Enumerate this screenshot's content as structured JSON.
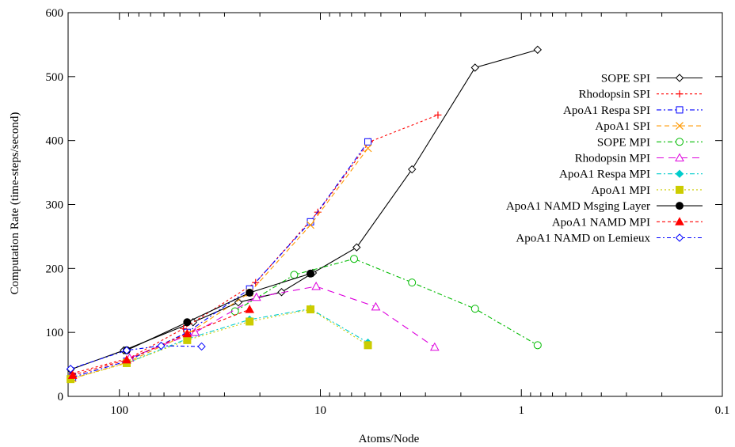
{
  "chart_data": {
    "type": "line",
    "xlabel": "Atoms/Node",
    "ylabel": "Computation Rate (time-steps/second)",
    "x_scale": "log",
    "x_reversed": true,
    "xlim": [
      180,
      0.1
    ],
    "ylim": [
      0,
      600
    ],
    "grid": false,
    "legend_position": "right",
    "x_ticks": [
      {
        "value": 100,
        "label": "100"
      },
      {
        "value": 10,
        "label": "10"
      },
      {
        "value": 1,
        "label": "1"
      },
      {
        "value": 0.1,
        "label": "0.1"
      }
    ],
    "y_ticks": [
      {
        "value": 0,
        "label": "0"
      },
      {
        "value": 100,
        "label": "100"
      },
      {
        "value": 200,
        "label": "200"
      },
      {
        "value": 300,
        "label": "300"
      },
      {
        "value": 400,
        "label": "400"
      },
      {
        "value": 500,
        "label": "500"
      },
      {
        "value": 600,
        "label": "600"
      }
    ],
    "series": [
      {
        "name": "SOPE SPI",
        "color": "#000000",
        "dash": "",
        "marker": "diamond",
        "x": [
          175,
          95,
          43,
          25.6,
          15.6,
          10.9,
          6.6,
          3.5,
          1.7,
          0.83
        ],
        "y": [
          42,
          72,
          116,
          147,
          163,
          193,
          233,
          355,
          514,
          542
        ]
      },
      {
        "name": "Rhodopsin SPI",
        "color": "#ff0000",
        "dash": "3,3",
        "marker": "plus",
        "x": [
          171,
          89,
          48,
          21,
          10.3,
          5.7,
          2.6
        ],
        "y": [
          36,
          60,
          106,
          178,
          288,
          398,
          440
        ]
      },
      {
        "name": "ApoA1 Respa SPI",
        "color": "#0000ff",
        "dash": "6,3,2,3",
        "marker": "square",
        "x": [
          171,
          92,
          46,
          22.5,
          11.2,
          5.8
        ],
        "y": [
          30,
          55,
          100,
          168,
          273,
          398
        ]
      },
      {
        "name": "ApoA1 SPI",
        "color": "#ff9900",
        "dash": "6,4",
        "marker": "x",
        "x": [
          171,
          92,
          46,
          22.5,
          11.2,
          5.8
        ],
        "y": [
          28,
          53,
          97,
          162,
          268,
          388
        ]
      },
      {
        "name": "SOPE MPI",
        "color": "#00bb00",
        "dash": "6,3,2,3",
        "marker": "circle",
        "x": [
          26.6,
          13.5,
          6.8,
          3.5,
          1.7,
          0.83
        ],
        "y": [
          133,
          190,
          215,
          178,
          137,
          80
        ]
      },
      {
        "name": "Rhodopsin MPI",
        "color": "#dd00dd",
        "dash": "9,6",
        "marker": "triangle",
        "x": [
          89,
          42,
          20.8,
          10.5,
          5.3,
          2.7
        ],
        "y": [
          60,
          100,
          155,
          172,
          140,
          77
        ]
      },
      {
        "name": "ApoA1 Respa MPI",
        "color": "#00cccc",
        "dash": "6,3,2,3",
        "marker": "filled-diamond",
        "x": [
          92,
          46,
          22.5,
          11.2,
          5.8
        ],
        "y": [
          52,
          90,
          120,
          137,
          84
        ]
      },
      {
        "name": "ApoA1 MPI",
        "color": "#cccc00",
        "dash": "2,3",
        "marker": "filled-square",
        "x": [
          175,
          92,
          46,
          22.5,
          11.2,
          5.8
        ],
        "y": [
          27,
          52,
          88,
          117,
          136,
          80
        ]
      },
      {
        "name": "ApoA1 NAMD Msging Layer",
        "color": "#000000",
        "dash": "",
        "marker": "filled-circle",
        "x": [
          92,
          46,
          22.5,
          11.2
        ],
        "y": [
          72,
          116,
          162,
          192
        ]
      },
      {
        "name": "ApoA1 NAMD MPI",
        "color": "#ff0000",
        "dash": "4,3",
        "marker": "filled-triangle",
        "x": [
          171,
          92,
          46,
          22.5
        ],
        "y": [
          33,
          57,
          98,
          136
        ]
      },
      {
        "name": "ApoA1 NAMD on Lemieux",
        "color": "#0000ff",
        "dash": "5,3,2,3",
        "marker": "diamond",
        "x": [
          175,
          92,
          62,
          39
        ],
        "y": [
          43,
          72,
          79,
          78
        ]
      }
    ]
  }
}
